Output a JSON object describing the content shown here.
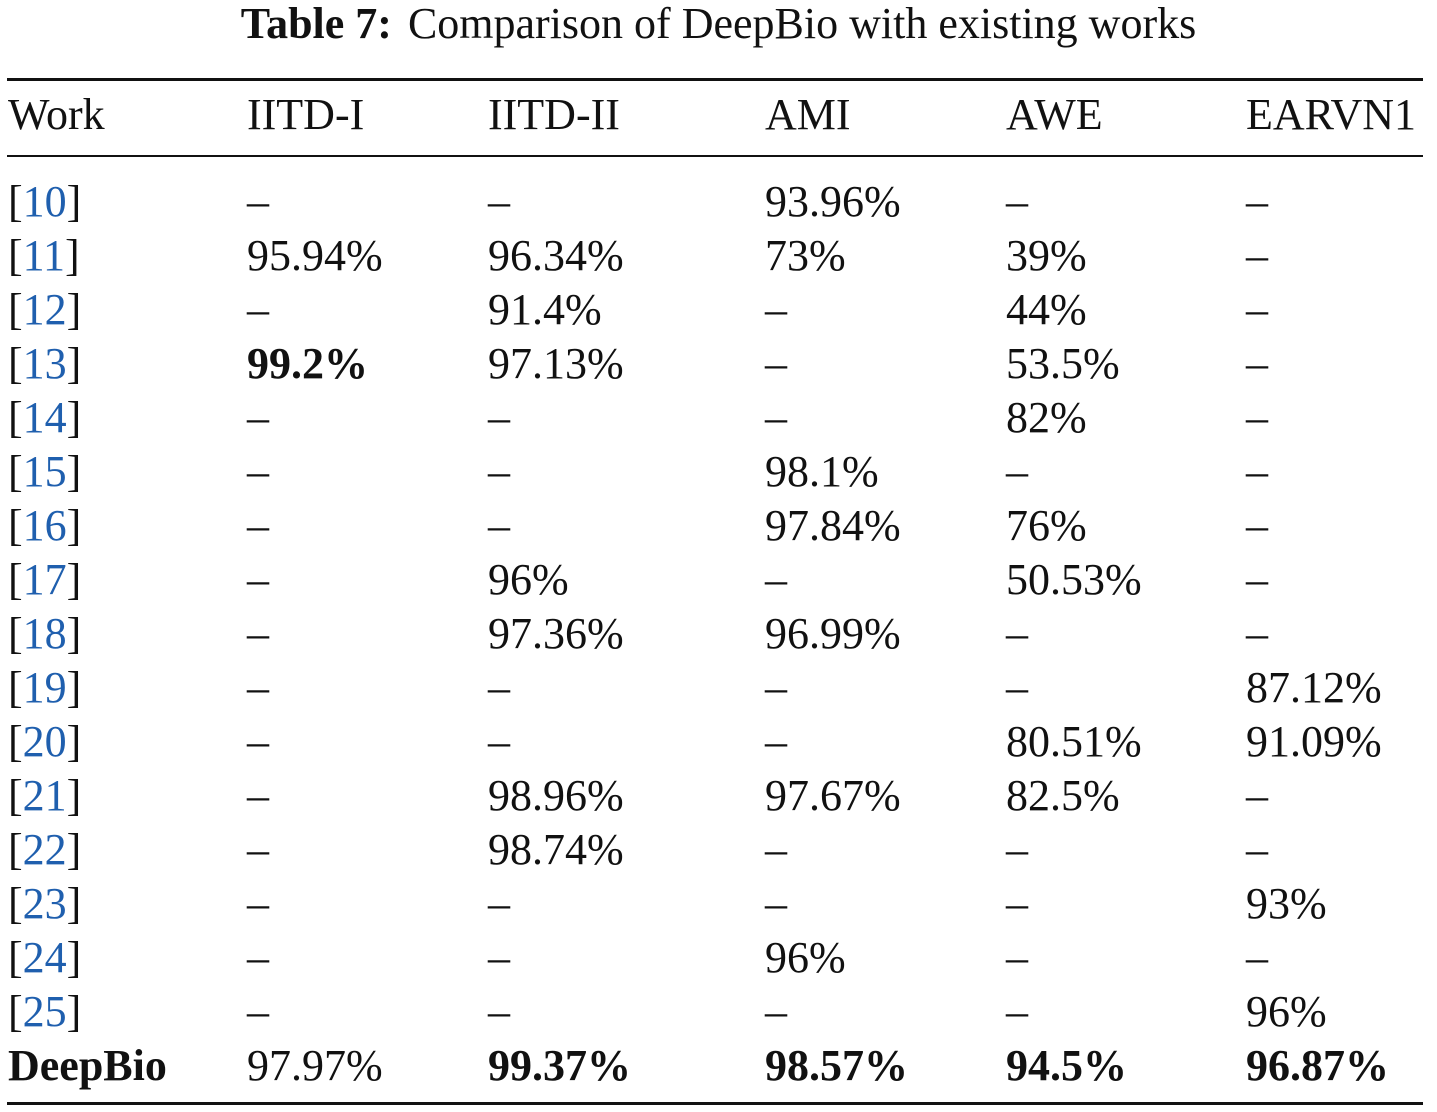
{
  "caption": {
    "label": "Table 7:",
    "text": "Comparison of DeepBio with existing works"
  },
  "table": {
    "headers": [
      "Work",
      "IITD-I",
      "IITD-II",
      "AMI",
      "AWE",
      "EARVN1"
    ],
    "rows": [
      {
        "work": "10",
        "cells": [
          "–",
          "–",
          "93.96%",
          "–",
          "–"
        ]
      },
      {
        "work": "11",
        "cells": [
          "95.94%",
          "96.34%",
          "73%",
          "39%",
          "–"
        ]
      },
      {
        "work": "12",
        "cells": [
          "–",
          "91.4%",
          "–",
          "44%",
          "–"
        ]
      },
      {
        "work": "13",
        "cells": [
          "99.2%",
          "97.13%",
          "–",
          "53.5%",
          "–"
        ]
      },
      {
        "work": "14",
        "cells": [
          "–",
          "–",
          "–",
          "82%",
          "–"
        ]
      },
      {
        "work": "15",
        "cells": [
          "–",
          "–",
          "98.1%",
          "–",
          "–"
        ]
      },
      {
        "work": "16",
        "cells": [
          "–",
          "–",
          "97.84%",
          "76%",
          "–"
        ]
      },
      {
        "work": "17",
        "cells": [
          "–",
          "96%",
          "–",
          "50.53%",
          "–"
        ]
      },
      {
        "work": "18",
        "cells": [
          "–",
          "97.36%",
          "96.99%",
          "–",
          "–"
        ]
      },
      {
        "work": "19",
        "cells": [
          "–",
          "–",
          "–",
          "–",
          "87.12%"
        ]
      },
      {
        "work": "20",
        "cells": [
          "–",
          "–",
          "–",
          "80.51%",
          "91.09%"
        ]
      },
      {
        "work": "21",
        "cells": [
          "–",
          "98.96%",
          "97.67%",
          "82.5%",
          "–"
        ]
      },
      {
        "work": "22",
        "cells": [
          "–",
          "98.74%",
          "–",
          "–",
          "–"
        ]
      },
      {
        "work": "23",
        "cells": [
          "–",
          "–",
          "–",
          "–",
          "93%"
        ]
      },
      {
        "work": "24",
        "cells": [
          "–",
          "–",
          "96%",
          "–",
          "–"
        ]
      },
      {
        "work": "25",
        "cells": [
          "–",
          "–",
          "–",
          "–",
          "96%"
        ]
      }
    ],
    "final_row": {
      "work": "DeepBio",
      "cells": [
        "97.97%",
        "99.37%",
        "98.57%",
        "94.5%",
        "96.87%"
      ]
    },
    "bold_cells": [
      "3:1",
      "16:0",
      "16:2",
      "16:3",
      "16:4",
      "16:5"
    ],
    "colors": {
      "reference_link": "#1f5fae",
      "text": "#111111"
    }
  }
}
